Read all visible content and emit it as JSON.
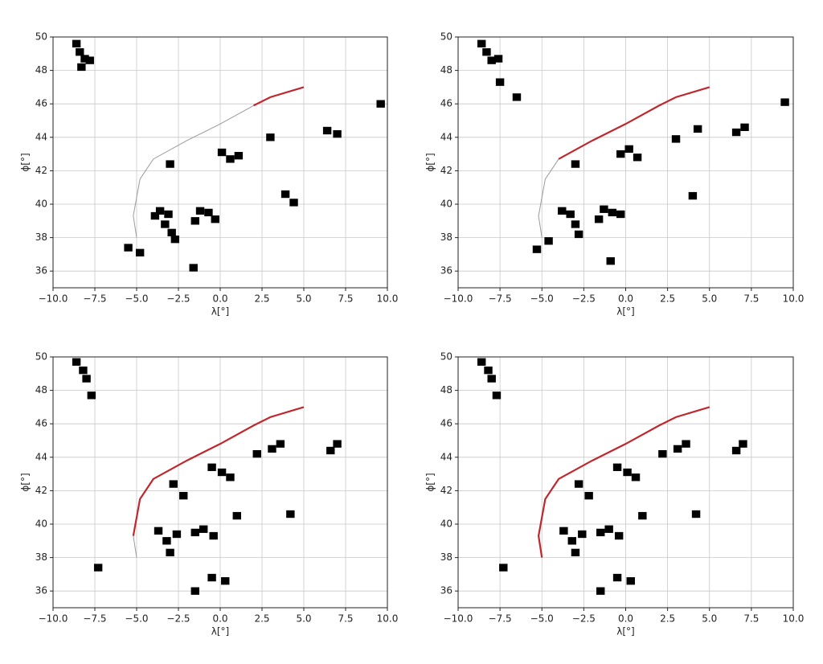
{
  "chart_data": [
    {
      "type": "line",
      "xlabel": "λ[°]",
      "ylabel": "ϕ[°]",
      "xlim": [
        -10,
        10
      ],
      "ylim": [
        35,
        50
      ],
      "grid": true,
      "xticks": [
        {
          "value": -10,
          "label": "−10.0"
        },
        {
          "value": -7.5,
          "label": "−7.5"
        },
        {
          "value": -5,
          "label": "−5.0"
        },
        {
          "value": -2.5,
          "label": "−2.5"
        },
        {
          "value": 0,
          "label": "0.0"
        },
        {
          "value": 2.5,
          "label": "2.5"
        },
        {
          "value": 5,
          "label": "5.0"
        },
        {
          "value": 7.5,
          "label": "7.5"
        },
        {
          "value": 10,
          "label": "10.0"
        }
      ],
      "yticks": [
        36,
        38,
        40,
        42,
        44,
        46,
        48,
        50
      ],
      "cells": {
        "x": [
          -8.6,
          -8.4,
          -8.1,
          -8.3,
          -7.8,
          -3.6,
          -3.1,
          -3.3,
          -2.9,
          -2.7,
          -1.2,
          -0.7,
          -0.3,
          -1.5,
          0.1,
          0.6,
          1.1,
          -3.0,
          -5.5,
          -4.8,
          3.9,
          4.4,
          6.4,
          7.0,
          3.0,
          9.6,
          -1.6,
          -3.9
        ],
        "y": [
          49.6,
          49.1,
          48.7,
          48.2,
          48.6,
          39.6,
          39.4,
          38.8,
          38.3,
          37.9,
          39.6,
          39.5,
          39.1,
          39.0,
          43.1,
          42.7,
          42.9,
          42.4,
          37.4,
          37.1,
          40.6,
          40.1,
          44.4,
          44.2,
          44.0,
          46.0,
          36.2,
          39.3
        ]
      },
      "series": [
        {
          "color": "#9a9a9a",
          "x": [
            -5,
            -5.2,
            -4.8,
            -4,
            -2,
            0,
            2
          ],
          "values": [
            38,
            39.3,
            41.5,
            42.7,
            43.8,
            44.8,
            45.9
          ]
        },
        {
          "color": "#c0272d",
          "x": [
            2,
            3,
            5
          ],
          "values": [
            45.9,
            46.4,
            47
          ]
        }
      ]
    },
    {
      "type": "line",
      "xlabel": "λ[°]",
      "ylabel": "ϕ[°]",
      "xlim": [
        -10,
        10
      ],
      "ylim": [
        35,
        50
      ],
      "grid": true,
      "xticks": [
        {
          "value": -10,
          "label": "−10.0"
        },
        {
          "value": -7.5,
          "label": "−7.5"
        },
        {
          "value": -5,
          "label": "−5.0"
        },
        {
          "value": -2.5,
          "label": "−2.5"
        },
        {
          "value": 0,
          "label": "0.0"
        },
        {
          "value": 2.5,
          "label": "2.5"
        },
        {
          "value": 5,
          "label": "5.0"
        },
        {
          "value": 7.5,
          "label": "7.5"
        },
        {
          "value": 10,
          "label": "10.0"
        }
      ],
      "yticks": [
        36,
        38,
        40,
        42,
        44,
        46,
        48,
        50
      ],
      "cells": {
        "x": [
          -8.6,
          -8.3,
          -8.0,
          -7.6,
          -7.5,
          -3.8,
          -3.3,
          -3.0,
          -2.8,
          -1.3,
          -0.8,
          -0.3,
          -1.6,
          0.2,
          -0.3,
          0.7,
          -3.0,
          -5.3,
          -4.6,
          4.0,
          6.6,
          7.1,
          4.3,
          3.0,
          9.5,
          -0.9,
          -6.5
        ],
        "y": [
          49.6,
          49.1,
          48.6,
          48.7,
          47.3,
          39.6,
          39.4,
          38.8,
          38.2,
          39.7,
          39.5,
          39.4,
          39.1,
          43.3,
          43.0,
          42.8,
          42.4,
          37.3,
          37.8,
          40.5,
          44.3,
          44.6,
          44.5,
          43.9,
          46.1,
          36.6,
          46.4
        ]
      },
      "series": [
        {
          "color": "#9a9a9a",
          "x": [
            -5,
            -5.2,
            -4.8,
            -4
          ],
          "values": [
            38,
            39.3,
            41.5,
            42.7
          ]
        },
        {
          "color": "#c0272d",
          "x": [
            -4,
            -2,
            0,
            2,
            3,
            5
          ],
          "values": [
            42.7,
            43.8,
            44.8,
            45.9,
            46.4,
            47
          ]
        }
      ]
    },
    {
      "type": "line",
      "xlabel": "λ[°]",
      "ylabel": "ϕ[°]",
      "xlim": [
        -10,
        10
      ],
      "ylim": [
        35,
        50
      ],
      "grid": true,
      "xticks": [
        {
          "value": -10,
          "label": "−10.0"
        },
        {
          "value": -7.5,
          "label": "−7.5"
        },
        {
          "value": -5,
          "label": "−5.0"
        },
        {
          "value": -2.5,
          "label": "−2.5"
        },
        {
          "value": 0,
          "label": "0.0"
        },
        {
          "value": 2.5,
          "label": "2.5"
        },
        {
          "value": 5,
          "label": "5.0"
        },
        {
          "value": 7.5,
          "label": "7.5"
        },
        {
          "value": 10,
          "label": "10.0"
        }
      ],
      "yticks": [
        36,
        38,
        40,
        42,
        44,
        46,
        48,
        50
      ],
      "cells": {
        "x": [
          -8.6,
          -8.2,
          -8.0,
          -7.7,
          -3.7,
          -3.2,
          -3.0,
          -2.6,
          -1.5,
          -1.0,
          -0.4,
          -0.5,
          0.1,
          0.6,
          -2.8,
          -2.2,
          1.0,
          2.2,
          3.1,
          3.6,
          6.6,
          7.0,
          4.2,
          -0.5,
          0.3,
          -1.5,
          -7.3
        ],
        "y": [
          49.7,
          49.2,
          48.7,
          47.7,
          39.6,
          39.0,
          38.3,
          39.4,
          39.5,
          39.7,
          39.3,
          43.4,
          43.1,
          42.8,
          42.4,
          41.7,
          40.5,
          44.2,
          44.5,
          44.8,
          44.4,
          44.8,
          40.6,
          36.8,
          36.6,
          36.0,
          37.4
        ]
      },
      "series": [
        {
          "color": "#9a9a9a",
          "x": [
            -5,
            -5.2
          ],
          "values": [
            38,
            39.3
          ]
        },
        {
          "color": "#c0272d",
          "x": [
            -5.2,
            -4.8,
            -4,
            -2,
            0,
            2,
            3,
            5
          ],
          "values": [
            39.3,
            41.5,
            42.7,
            43.8,
            44.8,
            45.9,
            46.4,
            47
          ]
        }
      ]
    },
    {
      "type": "line",
      "xlabel": "λ[°]",
      "ylabel": "ϕ[°]",
      "xlim": [
        -10,
        10
      ],
      "ylim": [
        35,
        50
      ],
      "grid": true,
      "xticks": [
        {
          "value": -10,
          "label": "−10.0"
        },
        {
          "value": -7.5,
          "label": "−7.5"
        },
        {
          "value": -5,
          "label": "−5.0"
        },
        {
          "value": -2.5,
          "label": "−2.5"
        },
        {
          "value": 0,
          "label": "0.0"
        },
        {
          "value": 2.5,
          "label": "2.5"
        },
        {
          "value": 5,
          "label": "5.0"
        },
        {
          "value": 7.5,
          "label": "7.5"
        },
        {
          "value": 10,
          "label": "10.0"
        }
      ],
      "yticks": [
        36,
        38,
        40,
        42,
        44,
        46,
        48,
        50
      ],
      "cells": {
        "x": [
          -8.6,
          -8.2,
          -8.0,
          -7.7,
          -3.7,
          -3.2,
          -3.0,
          -2.6,
          -1.5,
          -1.0,
          -0.4,
          -0.5,
          0.1,
          0.6,
          -2.8,
          -2.2,
          1.0,
          2.2,
          3.1,
          3.6,
          6.6,
          7.0,
          4.2,
          -0.5,
          0.3,
          -1.5,
          -7.3
        ],
        "y": [
          49.7,
          49.2,
          48.7,
          47.7,
          39.6,
          39.0,
          38.3,
          39.4,
          39.5,
          39.7,
          39.3,
          43.4,
          43.1,
          42.8,
          42.4,
          41.7,
          40.5,
          44.2,
          44.5,
          44.8,
          44.4,
          44.8,
          40.6,
          36.8,
          36.6,
          36.0,
          37.4
        ]
      },
      "series": [
        {
          "color": "#c0272d",
          "x": [
            -5,
            -5.2,
            -4.8,
            -4,
            -2,
            0,
            2,
            3,
            5
          ],
          "values": [
            38,
            39.3,
            41.5,
            42.7,
            43.8,
            44.8,
            45.9,
            46.4,
            47
          ]
        }
      ]
    }
  ]
}
